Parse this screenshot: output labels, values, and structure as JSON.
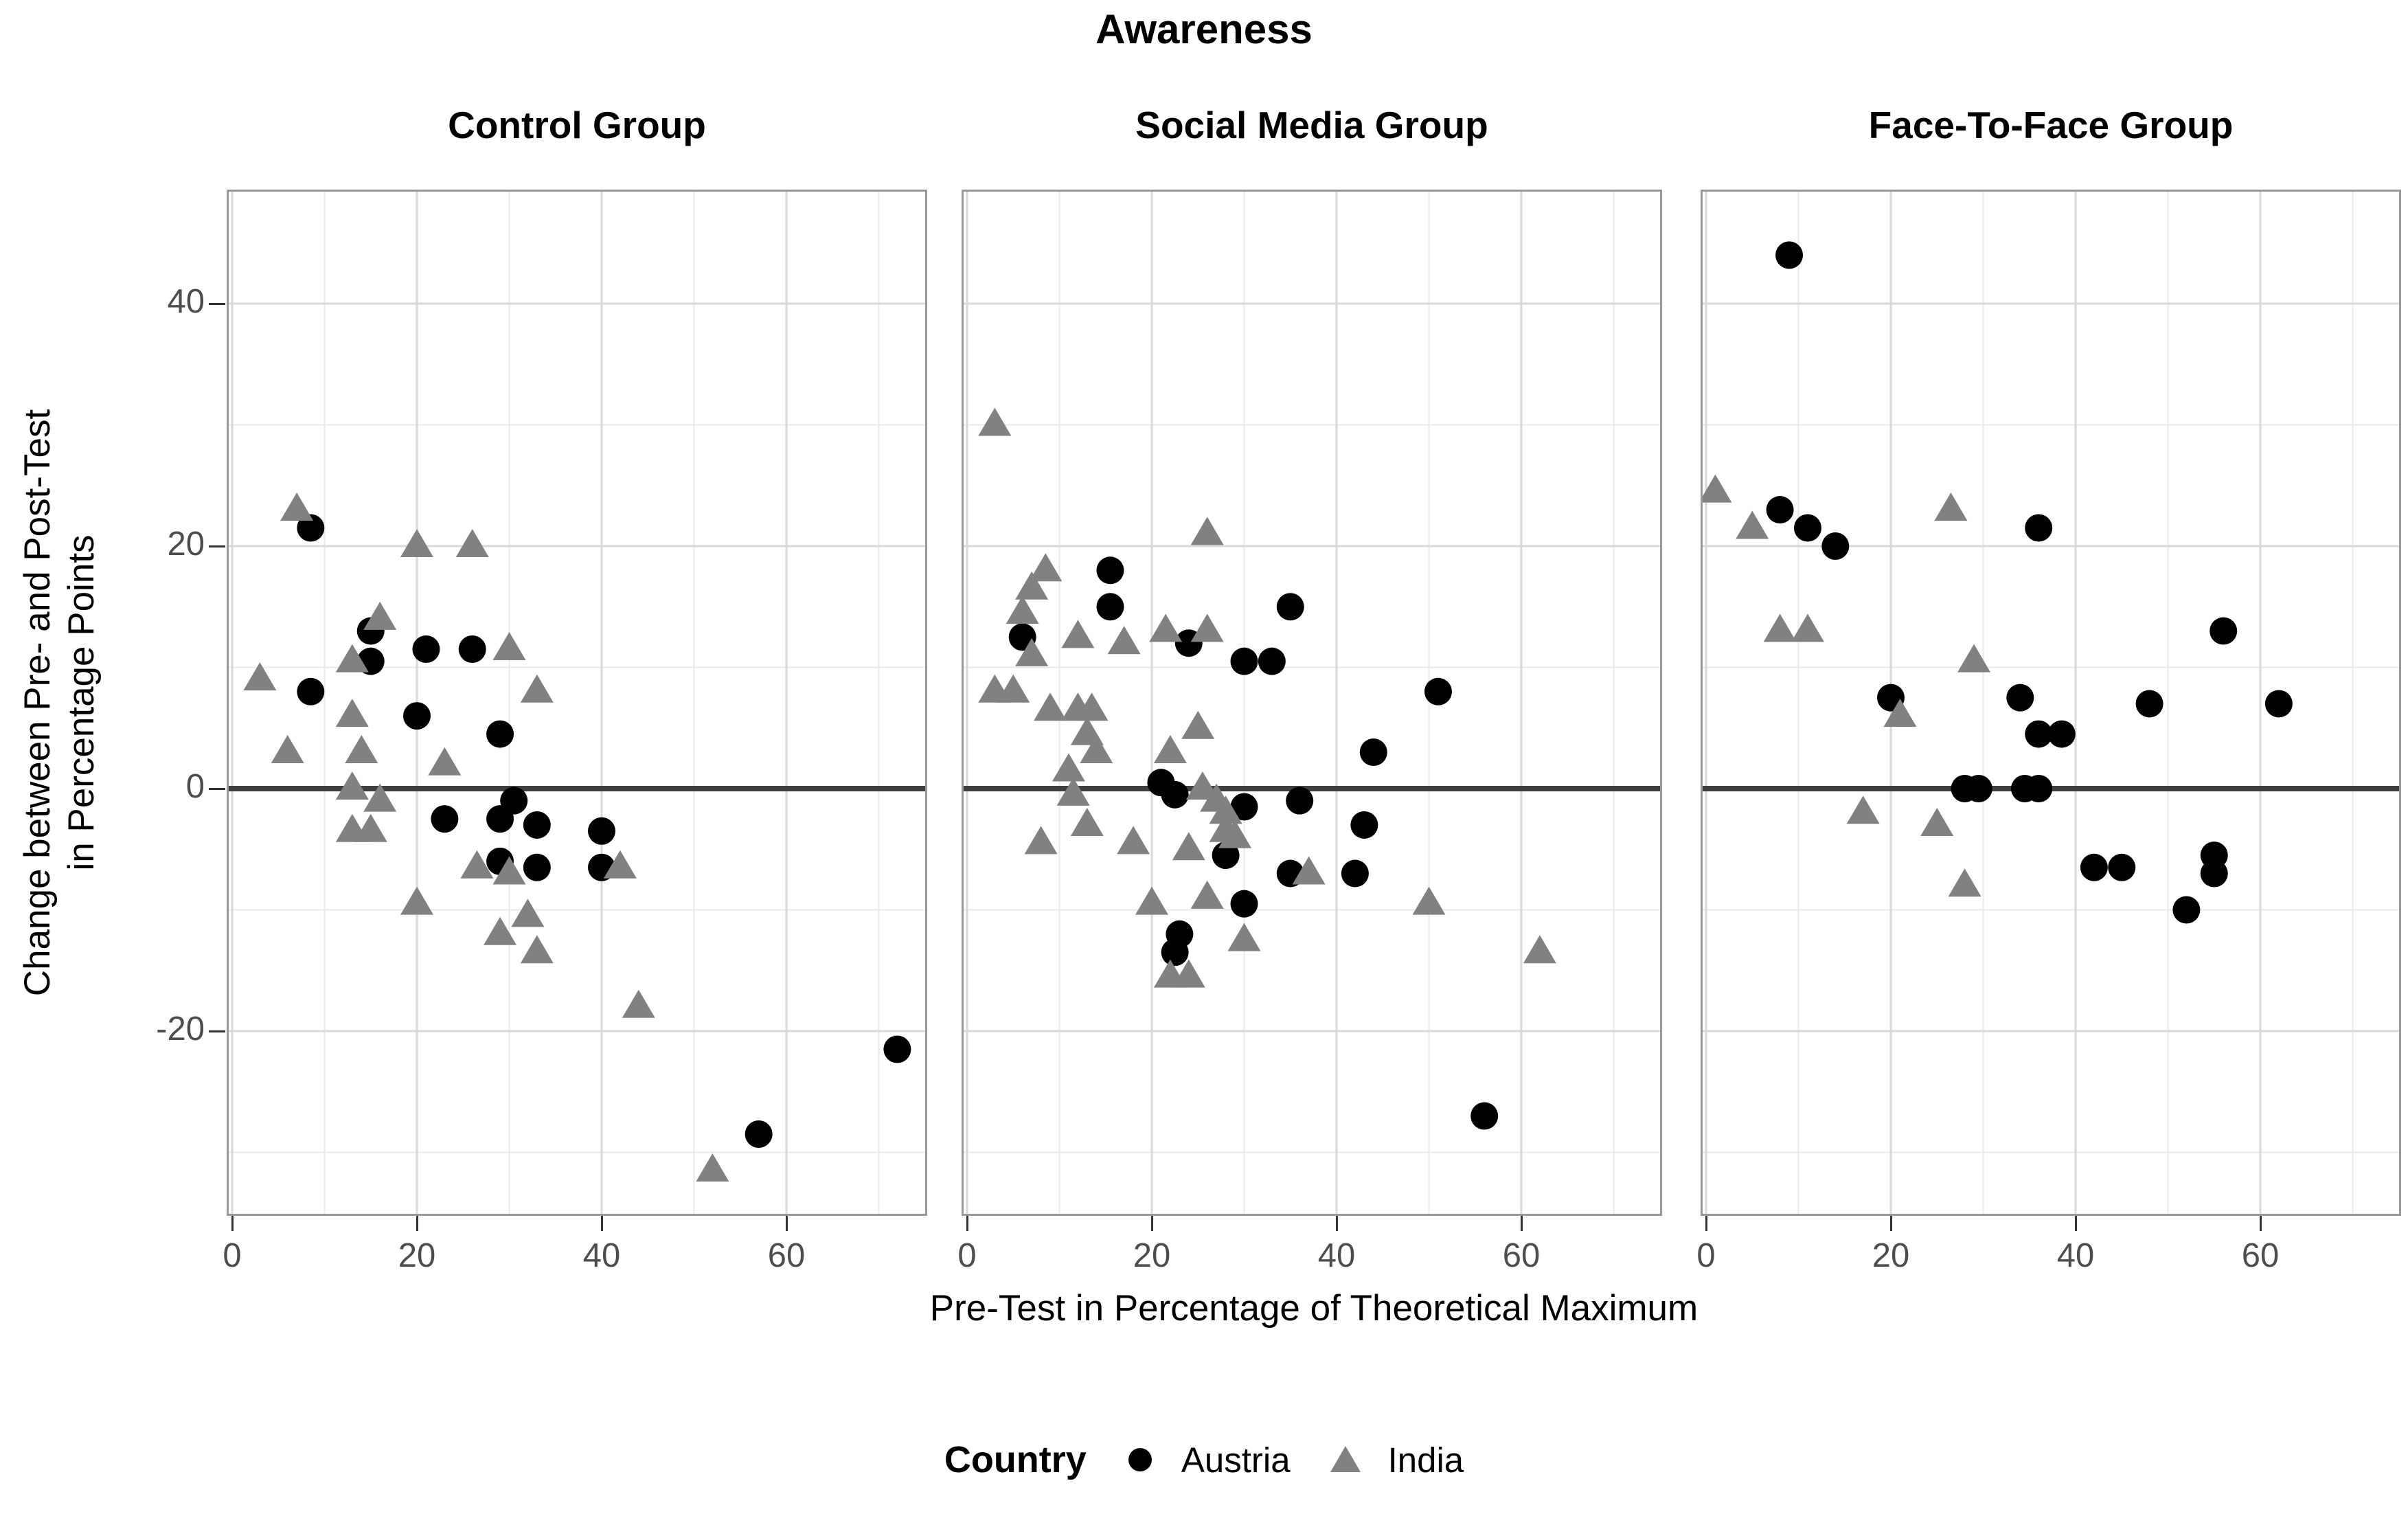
{
  "title": "Awareness",
  "legend": {
    "label": "Country",
    "entries": [
      {
        "name": "Austria",
        "marker": "circle",
        "color": "#000000"
      },
      {
        "name": "India",
        "marker": "triangle",
        "color": "#818181"
      }
    ]
  },
  "axes": {
    "x_title": "Pre-Test in Percentage of Theoretical Maximum",
    "y_title_line1": "Change between Pre- and Post-Test",
    "y_title_line2": "in Percentage Points",
    "x_ticks": [
      0,
      20,
      40,
      60
    ],
    "x_minor": [
      10,
      30,
      50,
      70
    ],
    "y_ticks": [
      -20,
      0,
      20,
      40
    ],
    "y_minor": [
      -30,
      -10,
      10,
      30
    ],
    "x_domain": [
      -1,
      75
    ],
    "y_domain": [
      -35.2,
      49.4
    ],
    "zero_reference_line": 0,
    "grid": "on"
  },
  "colors": {
    "austria": "#000000",
    "india": "#818181",
    "grid_major": "#d9d9d9",
    "grid_minor": "#eaeaea",
    "panel_border": "#999999",
    "zero_line": "#3f3f3f",
    "tick_label": "#4d4d4d",
    "tick_mark": "#333333"
  },
  "chart_data": [
    {
      "type": "scatter",
      "facet": "Control Group",
      "series": [
        {
          "name": "Austria",
          "marker": "circle",
          "points": [
            [
              8.5,
              21.5
            ],
            [
              15,
              13
            ],
            [
              21,
              11.5
            ],
            [
              26,
              11.5
            ],
            [
              15,
              10.5
            ],
            [
              8.5,
              8
            ],
            [
              20,
              6
            ],
            [
              29,
              4.5
            ],
            [
              30.5,
              -1
            ],
            [
              29,
              -2.5
            ],
            [
              23,
              -2.5
            ],
            [
              33,
              -3
            ],
            [
              40,
              -3.5
            ],
            [
              29,
              -6
            ],
            [
              33,
              -6.5
            ],
            [
              40,
              -6.5
            ],
            [
              57,
              -28.5
            ],
            [
              72,
              -21.5
            ]
          ]
        },
        {
          "name": "India",
          "marker": "triangle",
          "points": [
            [
              7,
              23
            ],
            [
              16,
              14
            ],
            [
              20,
              20
            ],
            [
              26,
              20
            ],
            [
              13,
              10.5
            ],
            [
              30,
              11.5
            ],
            [
              3,
              9
            ],
            [
              33,
              8
            ],
            [
              13,
              6
            ],
            [
              6,
              3
            ],
            [
              14,
              3
            ],
            [
              23,
              2
            ],
            [
              13,
              0
            ],
            [
              16,
              -1
            ],
            [
              13,
              -3.5
            ],
            [
              15,
              -3.5
            ],
            [
              26.5,
              -6.5
            ],
            [
              30,
              -7
            ],
            [
              42,
              -6.5
            ],
            [
              20,
              -9.5
            ],
            [
              32,
              -10.5
            ],
            [
              29,
              -12
            ],
            [
              33,
              -13.5
            ],
            [
              44,
              -18
            ],
            [
              52,
              -31.5
            ]
          ]
        }
      ]
    },
    {
      "type": "scatter",
      "facet": "Social Media Group",
      "series": [
        {
          "name": "Austria",
          "marker": "circle",
          "points": [
            [
              15.5,
              18
            ],
            [
              15.5,
              15
            ],
            [
              6,
              12.5
            ],
            [
              24,
              12
            ],
            [
              30,
              10.5
            ],
            [
              33,
              10.5
            ],
            [
              35,
              15
            ],
            [
              51,
              8
            ],
            [
              44,
              3
            ],
            [
              21,
              0.5
            ],
            [
              22.5,
              -0.5
            ],
            [
              30,
              -1.5
            ],
            [
              36,
              -1
            ],
            [
              43,
              -3
            ],
            [
              28,
              -5.5
            ],
            [
              35,
              -7
            ],
            [
              42,
              -7
            ],
            [
              30,
              -9.5
            ],
            [
              23,
              -12
            ],
            [
              22.5,
              -13.5
            ],
            [
              56,
              -27
            ]
          ]
        },
        {
          "name": "India",
          "marker": "triangle",
          "points": [
            [
              3,
              30
            ],
            [
              26,
              21
            ],
            [
              8.5,
              18
            ],
            [
              7,
              16.5
            ],
            [
              6,
              14.5
            ],
            [
              7,
              11
            ],
            [
              12,
              12.5
            ],
            [
              17,
              12
            ],
            [
              21.5,
              13
            ],
            [
              26,
              13
            ],
            [
              3,
              8
            ],
            [
              5,
              8
            ],
            [
              9,
              6.5
            ],
            [
              12,
              6.5
            ],
            [
              13.5,
              6.5
            ],
            [
              13,
              4.5
            ],
            [
              14,
              3
            ],
            [
              25,
              5
            ],
            [
              22,
              3
            ],
            [
              11,
              1.5
            ],
            [
              11.5,
              -0.5
            ],
            [
              25.5,
              0
            ],
            [
              27,
              -1
            ],
            [
              28,
              -2
            ],
            [
              28,
              -3.5
            ],
            [
              29,
              -4
            ],
            [
              13,
              -3
            ],
            [
              8,
              -4.5
            ],
            [
              18,
              -4.5
            ],
            [
              24,
              -5
            ],
            [
              37,
              -7
            ],
            [
              20,
              -9.5
            ],
            [
              26,
              -9
            ],
            [
              50,
              -9.5
            ],
            [
              30,
              -12.5
            ],
            [
              22,
              -15.5
            ],
            [
              24,
              -15.5
            ],
            [
              62,
              -13.5
            ]
          ]
        }
      ]
    },
    {
      "type": "scatter",
      "facet": "Face-To-Face Group",
      "series": [
        {
          "name": "Austria",
          "marker": "circle",
          "points": [
            [
              9,
              44
            ],
            [
              8,
              23
            ],
            [
              11,
              21.5
            ],
            [
              14,
              20
            ],
            [
              36,
              21.5
            ],
            [
              56,
              13
            ],
            [
              20,
              7.5
            ],
            [
              34,
              7.5
            ],
            [
              48,
              7
            ],
            [
              62,
              7
            ],
            [
              36,
              4.5
            ],
            [
              38.5,
              4.5
            ],
            [
              28,
              0
            ],
            [
              29.5,
              0
            ],
            [
              34.5,
              0
            ],
            [
              36,
              0
            ],
            [
              42,
              -6.5
            ],
            [
              45,
              -6.5
            ],
            [
              55,
              -5.5
            ],
            [
              55,
              -7
            ],
            [
              52,
              -10
            ]
          ]
        },
        {
          "name": "India",
          "marker": "triangle",
          "points": [
            [
              1,
              24.5
            ],
            [
              5,
              21.5
            ],
            [
              26.5,
              23
            ],
            [
              8,
              13
            ],
            [
              11,
              13
            ],
            [
              29,
              10.5
            ],
            [
              21,
              6
            ],
            [
              17,
              -2
            ],
            [
              25,
              -3
            ],
            [
              28,
              -8
            ]
          ]
        }
      ]
    }
  ]
}
